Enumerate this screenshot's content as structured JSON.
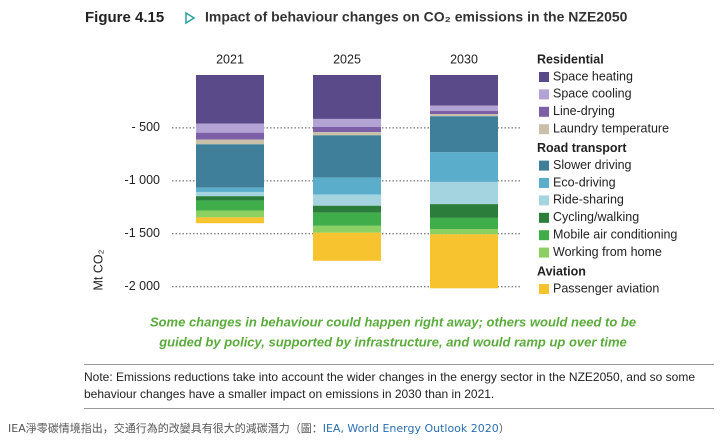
{
  "chart_data": {
    "type": "stacked_bar",
    "figure_label": "Figure 4.15",
    "title": "Impact of behaviour changes on CO₂ emissions in the NZE2050",
    "subtitle": [
      "Some changes in behaviour could happen right away; others would need to be",
      "guided by policy, supported by infrastructure, and would ramp up over time"
    ],
    "y_label": "Mt CO₂",
    "categories": [
      "2021",
      "2025",
      "2030"
    ],
    "ylim": [
      -2050,
      0
    ],
    "yticks": [
      {
        "value": -500,
        "label": "- 500"
      },
      {
        "value": -1000,
        "label": "-1 000"
      },
      {
        "value": -1500,
        "label": "-1 500"
      },
      {
        "value": -2000,
        "label": "-2 000"
      }
    ],
    "grid": true,
    "legend_groups": [
      {
        "name": "Residential",
        "first": 0
      },
      {
        "name": "Road transport",
        "first": 4
      },
      {
        "name": "Aviation",
        "first": 10
      }
    ],
    "series": [
      {
        "name": "Space heating",
        "color": "#5b4a8a",
        "values": [
          -460,
          -415,
          -290
        ]
      },
      {
        "name": "Space cooling",
        "color": "#b3a3d4",
        "values": [
          -85,
          -75,
          -50
        ]
      },
      {
        "name": "Line-drying",
        "color": "#7c5fa6",
        "values": [
          -65,
          -50,
          -30
        ]
      },
      {
        "name": "Laundry temperature",
        "color": "#c8c0a8",
        "values": [
          -45,
          -30,
          -20
        ]
      },
      {
        "name": "Slower driving",
        "color": "#3f7f99",
        "values": [
          -410,
          -400,
          -340
        ]
      },
      {
        "name": "Eco-driving",
        "color": "#5aaecb",
        "values": [
          -40,
          -160,
          -280
        ]
      },
      {
        "name": "Ride-sharing",
        "color": "#a4d4e0",
        "values": [
          -40,
          -105,
          -210
        ]
      },
      {
        "name": "Cycling/walking",
        "color": "#2a7d3a",
        "values": [
          -40,
          -65,
          -130
        ]
      },
      {
        "name": "Mobile air conditioning",
        "color": "#3fae4a",
        "values": [
          -95,
          -125,
          -105
        ]
      },
      {
        "name": "Working from home",
        "color": "#8ccf63",
        "values": [
          -65,
          -65,
          -50
        ]
      },
      {
        "name": "Passenger aviation",
        "color": "#f7c32e",
        "values": [
          -55,
          -265,
          -510
        ]
      }
    ]
  },
  "note": "Note: Emissions reductions take into account the wider changes in the energy sector in the NZE2050, and so some behaviour changes have a smaller impact on emissions in 2030 than in 2021.",
  "caption": {
    "text": "IEA淨零碳情境指出，交通行為的改變具有很大的減碳潛力（圖：",
    "link": "IEA, World Energy Outlook 2020",
    "end": "）"
  }
}
